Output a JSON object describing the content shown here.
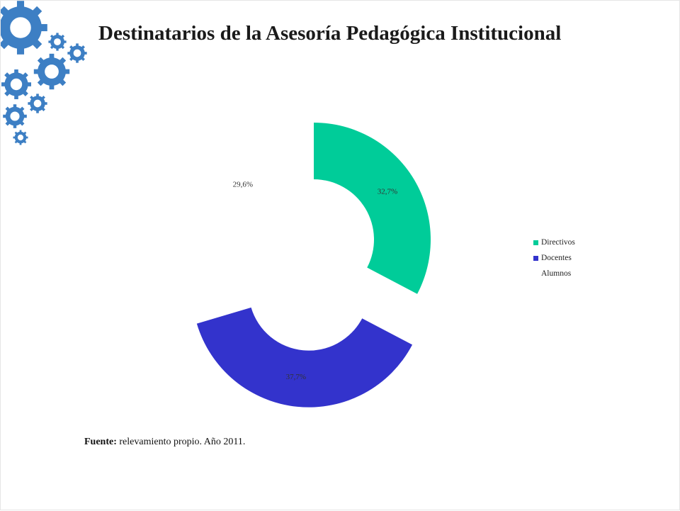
{
  "title": "Destinatarios de la Asesoría Pedagógica Institucional",
  "source": {
    "label": "Fuente:",
    "text": " relevamiento propio. Año 2011."
  },
  "decor": {
    "icon": "gears-icon",
    "color": "#3d7fc4"
  },
  "chart_data": {
    "type": "pie",
    "subtype": "doughnut",
    "title": "",
    "categories": [
      "Directivos",
      "Docentes",
      "Alumnos"
    ],
    "values": [
      32.7,
      37.7,
      29.6
    ],
    "labels": [
      "32,7%",
      "37,7%",
      "29,6%"
    ],
    "colors": [
      "#00cc99",
      "#3333cc",
      "#ffffff"
    ],
    "legend_position": "right"
  }
}
